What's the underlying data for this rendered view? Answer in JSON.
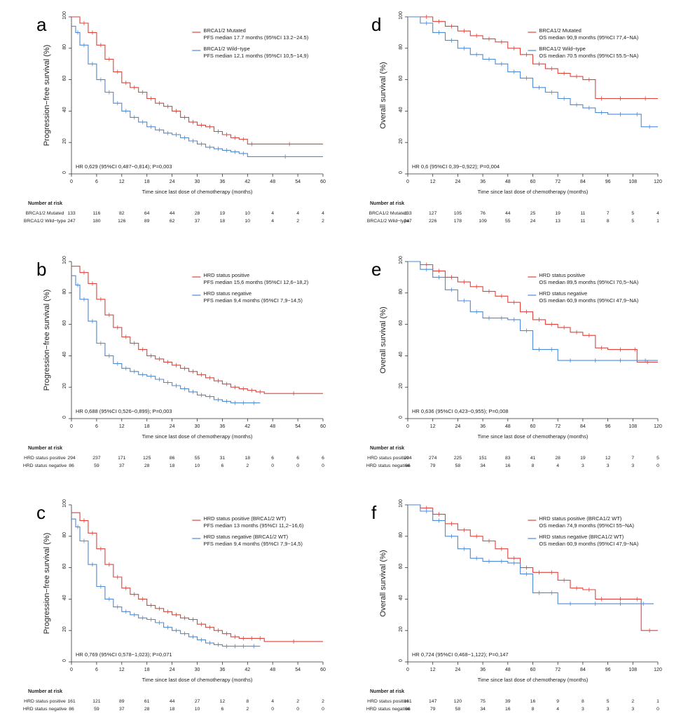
{
  "colors": {
    "red": "#e0423a",
    "blue": "#4a8ad8",
    "axis": "#333333"
  },
  "risk_header": "Number at risk",
  "chart_data": [
    {
      "panel_letter": "a",
      "type": "line",
      "ylabel": "Progression−free survival (%)",
      "xlabel": "Time since last dose of chemotherapy (months)",
      "xlim": [
        0,
        60
      ],
      "ylim": [
        0,
        100
      ],
      "xticks": [
        "0",
        "6",
        "12",
        "18",
        "24",
        "30",
        "36",
        "42",
        "48",
        "54",
        "60"
      ],
      "yticks": [
        "0",
        "20",
        "40",
        "60",
        "80",
        "100"
      ],
      "hr_text": "HR 0,629 (95%CI 0,487−0,814); P=0,003",
      "legend": [
        {
          "name": "BRCA1/2 Mutated",
          "detail": "PFS median 17.7 months (95%CI 13.2−24.5)"
        },
        {
          "name": "BRCA1/2 Wild−type",
          "detail": "PFS median 12,1 months (95%CI 10,5−14,9)"
        }
      ],
      "series": [
        {
          "x": [
            0,
            2,
            4,
            6,
            8,
            10,
            12,
            14,
            16,
            18,
            20,
            22,
            24,
            26,
            28,
            30,
            32,
            34,
            36,
            38,
            40,
            42,
            44,
            60
          ],
          "y": [
            100,
            96,
            90,
            82,
            73,
            65,
            58,
            55,
            52,
            48,
            45,
            43,
            40,
            36,
            33,
            31,
            30,
            27,
            25,
            23,
            22,
            19,
            19,
            19
          ]
        },
        {
          "x": [
            0,
            1,
            2,
            4,
            6,
            8,
            10,
            12,
            14,
            16,
            18,
            20,
            22,
            24,
            26,
            28,
            30,
            32,
            34,
            36,
            38,
            40,
            42,
            60
          ],
          "y": [
            94,
            90,
            82,
            70,
            60,
            52,
            45,
            40,
            36,
            33,
            30,
            28,
            26,
            25,
            23,
            21,
            19,
            17,
            16,
            15,
            14,
            13,
            11,
            11
          ]
        }
      ],
      "risk_labels": [
        "BRCA1/2 Mutated",
        "BRCA1/2 Wild−type"
      ],
      "risk_values": [
        [
          "133",
          "116",
          "82",
          "64",
          "44",
          "28",
          "19",
          "10",
          "4",
          "4",
          "4"
        ],
        [
          "247",
          "180",
          "126",
          "89",
          "62",
          "37",
          "18",
          "10",
          "4",
          "2",
          "2"
        ]
      ]
    },
    {
      "panel_letter": "b",
      "type": "line",
      "ylabel": "Progression−free survival (%)",
      "xlabel": "Time since last dose of chemotherapy (months)",
      "xlim": [
        0,
        60
      ],
      "ylim": [
        0,
        100
      ],
      "xticks": [
        "0",
        "6",
        "12",
        "18",
        "24",
        "30",
        "36",
        "42",
        "48",
        "54",
        "60"
      ],
      "yticks": [
        "0",
        "20",
        "40",
        "60",
        "80",
        "100"
      ],
      "hr_text": "HR 0,688 (95%CI 0,526−0,899); P=0,003",
      "legend": [
        {
          "name": "HRD status positive",
          "detail": "PFS median 15,6 months (95%CI 12,6−18,2)"
        },
        {
          "name": "HRD status negative",
          "detail": "PFS median 9,4 months (95%CI 7,9−14,5)"
        }
      ],
      "series": [
        {
          "x": [
            0,
            2,
            4,
            6,
            8,
            10,
            12,
            14,
            16,
            18,
            20,
            22,
            24,
            26,
            28,
            30,
            32,
            34,
            36,
            38,
            40,
            42,
            44,
            46,
            60
          ],
          "y": [
            97,
            93,
            86,
            76,
            66,
            58,
            52,
            48,
            44,
            40,
            38,
            36,
            34,
            32,
            30,
            28,
            26,
            24,
            22,
            20,
            19,
            18,
            17,
            16,
            16
          ]
        },
        {
          "x": [
            0,
            1,
            2,
            4,
            6,
            8,
            10,
            12,
            14,
            16,
            18,
            20,
            22,
            24,
            26,
            28,
            30,
            32,
            34,
            36,
            38,
            40,
            42,
            45
          ],
          "y": [
            91,
            85,
            76,
            62,
            48,
            40,
            35,
            32,
            30,
            28,
            27,
            25,
            23,
            21,
            19,
            17,
            15,
            14,
            12,
            11,
            10,
            10,
            10,
            10
          ]
        }
      ],
      "risk_labels": [
        "HRD status positive",
        "HRD status negative"
      ],
      "risk_values": [
        [
          "294",
          "237",
          "171",
          "125",
          "86",
          "55",
          "31",
          "18",
          "6",
          "6",
          "6"
        ],
        [
          "86",
          "59",
          "37",
          "28",
          "18",
          "10",
          "6",
          "2",
          "0",
          "0",
          "0"
        ]
      ]
    },
    {
      "panel_letter": "c",
      "type": "line",
      "ylabel": "Progression−free survival (%)",
      "xlabel": "Time since last dose of chemotherapy (months)",
      "xlim": [
        0,
        60
      ],
      "ylim": [
        0,
        100
      ],
      "xticks": [
        "0",
        "6",
        "12",
        "18",
        "24",
        "30",
        "36",
        "42",
        "48",
        "54",
        "60"
      ],
      "yticks": [
        "0",
        "20",
        "40",
        "60",
        "80",
        "100"
      ],
      "hr_text": "HR 0,769 (95%CI 0,578−1,023); P=0,071",
      "legend": [
        {
          "name": "HRD status positive (BRCA1/2 WT)",
          "detail": "PFS median 13 months (95%CI 11,2−16,6)"
        },
        {
          "name": "HRD status negative (BRCA1/2 WT)",
          "detail": "PFS median 9,4 months (95%CI 7,9−14,5)"
        }
      ],
      "series": [
        {
          "x": [
            0,
            2,
            4,
            6,
            8,
            10,
            12,
            14,
            16,
            18,
            20,
            22,
            24,
            26,
            28,
            30,
            32,
            34,
            36,
            38,
            40,
            42,
            44,
            46,
            60
          ],
          "y": [
            95,
            90,
            82,
            72,
            62,
            54,
            47,
            43,
            40,
            36,
            34,
            32,
            30,
            28,
            27,
            24,
            22,
            20,
            18,
            16,
            15,
            15,
            15,
            13,
            13
          ]
        },
        {
          "x": [
            0,
            1,
            2,
            4,
            6,
            8,
            10,
            12,
            14,
            16,
            18,
            20,
            22,
            24,
            26,
            28,
            30,
            32,
            34,
            36,
            38,
            40,
            42,
            45
          ],
          "y": [
            91,
            86,
            77,
            62,
            48,
            40,
            35,
            32,
            30,
            28,
            27,
            25,
            22,
            20,
            18,
            16,
            14,
            12,
            11,
            10,
            10,
            10,
            10,
            10
          ]
        }
      ],
      "risk_labels": [
        "HRD status positive",
        "HRD status negative"
      ],
      "risk_values": [
        [
          "161",
          "121",
          "89",
          "61",
          "44",
          "27",
          "12",
          "8",
          "4",
          "2",
          "2"
        ],
        [
          "86",
          "59",
          "37",
          "28",
          "18",
          "10",
          "6",
          "2",
          "0",
          "0",
          "0"
        ]
      ]
    },
    {
      "panel_letter": "d",
      "type": "line",
      "ylabel": "Overall survival (%)",
      "xlabel": "Time since last dose of chemotherapy (months)",
      "xlim": [
        0,
        120
      ],
      "ylim": [
        0,
        100
      ],
      "xticks": [
        "0",
        "12",
        "24",
        "36",
        "48",
        "60",
        "72",
        "84",
        "96",
        "108",
        "120"
      ],
      "yticks": [
        "0",
        "20",
        "40",
        "60",
        "80",
        "100"
      ],
      "hr_text": "HR 0,6 (95%CI 0,39−0,922); P=0,004",
      "legend": [
        {
          "name": "BRCA1/2 Mutated",
          "detail": "OS median 90,9 months (95%CI 77,4−NA)"
        },
        {
          "name": "BRCA1/2 Wild−type",
          "detail": "OS median 70.5 months (95%CI 55.5−NA)"
        }
      ],
      "series": [
        {
          "x": [
            0,
            6,
            12,
            18,
            24,
            30,
            36,
            42,
            48,
            54,
            60,
            66,
            72,
            78,
            84,
            90,
            96,
            108,
            120
          ],
          "y": [
            100,
            100,
            97,
            94,
            91,
            88,
            86,
            84,
            80,
            76,
            70,
            67,
            64,
            62,
            60,
            48,
            48,
            48,
            48
          ]
        },
        {
          "x": [
            0,
            6,
            12,
            18,
            24,
            30,
            36,
            42,
            48,
            54,
            60,
            66,
            72,
            78,
            84,
            90,
            96,
            108,
            112,
            120
          ],
          "y": [
            100,
            96,
            90,
            85,
            80,
            76,
            73,
            70,
            65,
            61,
            55,
            52,
            48,
            44,
            42,
            39,
            38,
            38,
            30,
            30
          ]
        }
      ],
      "risk_labels": [
        "BRCA1/2 Mutated",
        "BRCA1/2 Wild−type"
      ],
      "risk_values": [
        [
          "133",
          "127",
          "105",
          "76",
          "44",
          "25",
          "19",
          "11",
          "7",
          "5",
          "4"
        ],
        [
          "247",
          "226",
          "178",
          "109",
          "55",
          "24",
          "13",
          "11",
          "8",
          "5",
          "1"
        ]
      ]
    },
    {
      "panel_letter": "e",
      "type": "line",
      "ylabel": "Overall survival (%)",
      "xlabel": "Time since last dose of chemotherapy (months)",
      "xlim": [
        0,
        120
      ],
      "ylim": [
        0,
        100
      ],
      "xticks": [
        "0",
        "12",
        "24",
        "36",
        "48",
        "60",
        "72",
        "84",
        "96",
        "108",
        "120"
      ],
      "yticks": [
        "0",
        "20",
        "40",
        "60",
        "80",
        "100"
      ],
      "hr_text": "HR 0,636 (95%CI 0,423−0,955); P=0,008",
      "legend": [
        {
          "name": "HRD status positive",
          "detail": "OS median 89,5 months (95%CI 70,5−NA)"
        },
        {
          "name": "HRD status negative",
          "detail": "OS median 60,9 months (95%CI 47,9−NA)"
        }
      ],
      "series": [
        {
          "x": [
            0,
            6,
            12,
            18,
            24,
            30,
            36,
            42,
            48,
            54,
            60,
            66,
            72,
            78,
            84,
            90,
            96,
            108,
            110,
            120
          ],
          "y": [
            100,
            98,
            94,
            90,
            87,
            84,
            81,
            78,
            74,
            68,
            63,
            60,
            58,
            55,
            53,
            45,
            44,
            44,
            36,
            36
          ]
        },
        {
          "x": [
            0,
            6,
            12,
            18,
            24,
            30,
            36,
            42,
            48,
            54,
            60,
            66,
            72,
            84,
            96,
            108,
            120
          ],
          "y": [
            100,
            95,
            90,
            82,
            75,
            68,
            64,
            64,
            63,
            56,
            44,
            44,
            37,
            37,
            37,
            37,
            37
          ]
        }
      ],
      "risk_labels": [
        "HRD status positive",
        "HRD status negative"
      ],
      "risk_values": [
        [
          "294",
          "274",
          "225",
          "151",
          "83",
          "41",
          "28",
          "19",
          "12",
          "7",
          "5"
        ],
        [
          "86",
          "79",
          "58",
          "34",
          "16",
          "8",
          "4",
          "3",
          "3",
          "3",
          "0"
        ]
      ]
    },
    {
      "panel_letter": "f",
      "type": "line",
      "ylabel": "Overall survival (%)",
      "xlabel": "Time since last dose of chemotherapy (months)",
      "xlim": [
        0,
        120
      ],
      "ylim": [
        0,
        100
      ],
      "xticks": [
        "0",
        "12",
        "24",
        "36",
        "48",
        "60",
        "72",
        "84",
        "96",
        "108",
        "120"
      ],
      "yticks": [
        "0",
        "20",
        "40",
        "60",
        "80",
        "100"
      ],
      "hr_text": "HR 0,724 (95%CI 0,468−1,122); P=0,147",
      "legend": [
        {
          "name": "HRD status positive (BRCA1/2 WT)",
          "detail": "OS median 74,9 months (95%CI 55−NA)"
        },
        {
          "name": "HRD status negative (BRCA1/2 WT)",
          "detail": "OS median 60,9 months (95%CI 47,9−NA)"
        }
      ],
      "series": [
        {
          "x": [
            0,
            6,
            12,
            18,
            24,
            30,
            36,
            42,
            48,
            54,
            60,
            66,
            72,
            78,
            84,
            90,
            96,
            108,
            112,
            120
          ],
          "y": [
            100,
            98,
            94,
            88,
            84,
            80,
            77,
            72,
            66,
            60,
            57,
            57,
            52,
            47,
            46,
            40,
            40,
            40,
            20,
            20
          ]
        },
        {
          "x": [
            0,
            6,
            12,
            18,
            24,
            30,
            36,
            42,
            48,
            54,
            60,
            66,
            72,
            84,
            96,
            108,
            118
          ],
          "y": [
            100,
            96,
            90,
            80,
            72,
            66,
            64,
            64,
            63,
            56,
            44,
            44,
            37,
            37,
            37,
            37,
            37
          ]
        }
      ],
      "risk_labels": [
        "HRD status positive",
        "HRD status negative"
      ],
      "risk_values": [
        [
          "161",
          "147",
          "120",
          "75",
          "39",
          "16",
          "9",
          "8",
          "5",
          "2",
          "1"
        ],
        [
          "86",
          "79",
          "58",
          "34",
          "16",
          "8",
          "4",
          "3",
          "3",
          "3",
          "0"
        ]
      ]
    }
  ]
}
